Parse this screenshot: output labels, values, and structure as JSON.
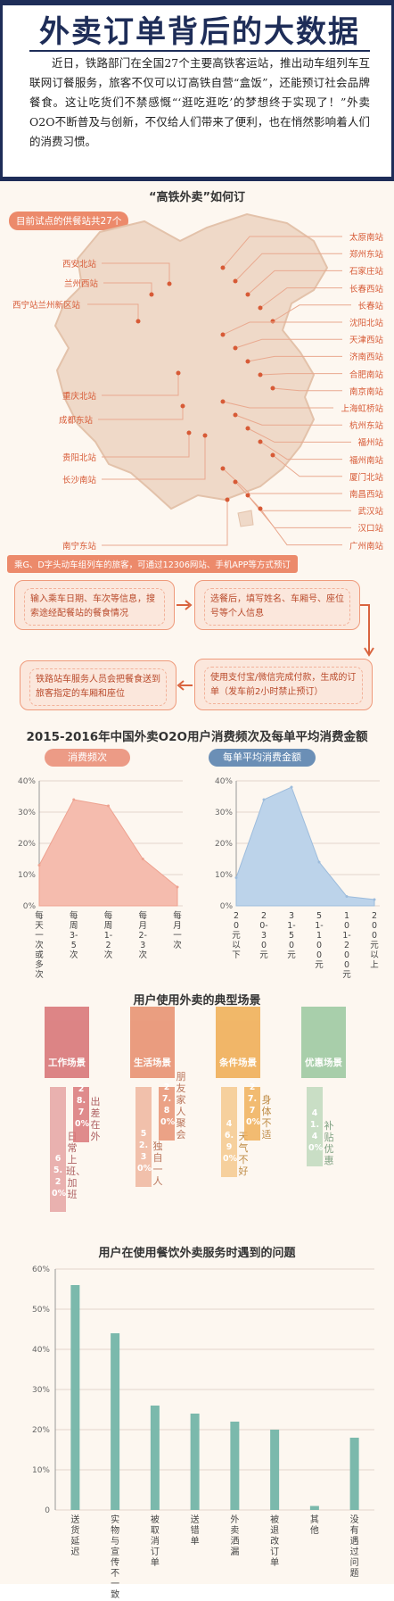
{
  "header": {
    "title": "外卖订单背后的大数据",
    "intro": "近日，铁路部门在全国27个主要高铁客运站，推出动车组列车互联网订餐服务，旅客不仅可以订高铁自营“盒饭”，还能预订社会品牌餐食。这让吃货们不禁感慨“‘逛吃逛吃’的梦想终于实现了！”外卖O2O不断普及与创新，不仅给人们带来了便利，也在悄然影响着人们的消费习惯。"
  },
  "map_section": {
    "title": "“高铁外卖”如何订",
    "pilot_tag": "目前试点的供餐站共27个",
    "stations_left": [
      "西安北站",
      "兰州西站",
      "西宁站兰州新区站",
      "重庆北站",
      "成都东站",
      "贵阳北站",
      "长沙南站",
      "南宁东站"
    ],
    "stations_right": [
      "太原南站",
      "郑州东站",
      "石家庄站",
      "长春西站",
      "长春站",
      "沈阳北站",
      "天津西站",
      "济南西站",
      "合肥南站",
      "南京南站",
      "上海虹桥站",
      "杭州东站",
      "福州站",
      "福州南站",
      "厦门北站",
      "南昌西站",
      "武汉站",
      "汉口站",
      "广州南站"
    ],
    "booking_tag": "乘G、D字头动车组列车的旅客，可通过12306网站、手机APP等方式预订",
    "flow": [
      "输入乘车日期、车次等信息，搜索途经配餐站的餐食情况",
      "选餐后，填写姓名、车厢号、座位号等个人信息",
      "使用支付宝/微信完成付款，生成的订单（发车前2小时禁止预订）",
      "铁路站车服务人员会把餐食送到旅客指定的车厢和座位"
    ]
  },
  "chart1": {
    "title": "2015-2016年中国外卖O2O用户消费频次及每单平均消费金额",
    "colors": {
      "left": "#f2b0a2",
      "right": "#b7cfe7",
      "left_pill": "#ec9b86",
      "right_pill": "#6b8fb6"
    }
  },
  "chart_data": [
    {
      "type": "area",
      "title": "消费频次",
      "categories": [
        "每天一次或多次",
        "每周3-5次",
        "每周1-2次",
        "每月2-3次",
        "每月一次"
      ],
      "values": [
        13,
        34,
        32,
        15,
        6
      ],
      "ylim": [
        0,
        40
      ],
      "yticks": [
        "0%",
        "10%",
        "20%",
        "30%",
        "40%"
      ]
    },
    {
      "type": "area",
      "title": "每单平均消费金额",
      "categories": [
        "20元以下",
        "20-30元",
        "31-50元",
        "51-100元",
        "101-200元",
        "200元以上"
      ],
      "values": [
        9,
        34,
        38,
        14,
        3,
        2
      ],
      "ylim": [
        0,
        40
      ],
      "yticks": [
        "0%",
        "10%",
        "20%",
        "30%",
        "40%"
      ]
    },
    {
      "type": "bar",
      "title": "用户使用外卖的典型场景",
      "groups": [
        {
          "name": "工作场景",
          "color": "#d9787a",
          "items": [
            {
              "label": "日常上班、加班",
              "value": 65.2,
              "display": "65.20%"
            },
            {
              "label": "出差在外",
              "value": 28.7,
              "display": "28.70%"
            }
          ]
        },
        {
          "name": "生活场景",
          "color": "#e89373",
          "items": [
            {
              "label": "独自一人",
              "value": 52.3,
              "display": "52.30%"
            },
            {
              "label": "朋友家人聚会",
              "value": 27.8,
              "display": "27.80%"
            }
          ]
        },
        {
          "name": "条件场景",
          "color": "#f0b05a",
          "items": [
            {
              "label": "天气不好",
              "value": 46.9,
              "display": "46.90%"
            },
            {
              "label": "身体不适",
              "value": 27.7,
              "display": "27.70%"
            }
          ]
        },
        {
          "name": "优惠场景",
          "color": "#9fcaa3",
          "items": [
            {
              "label": "补贴优惠",
              "value": 41.4,
              "display": "41.40%"
            }
          ]
        }
      ]
    },
    {
      "type": "bar",
      "title": "用户在使用餐饮外卖服务时遇到的问题",
      "categories": [
        "送货延迟",
        "实物与宣传不一致",
        "被取消订单",
        "送错单",
        "外卖洒漏",
        "被退改订单",
        "其他",
        "没有遇过问题"
      ],
      "values": [
        56,
        44,
        26,
        24,
        22,
        20,
        1,
        18
      ],
      "ylim": [
        0,
        60
      ],
      "yticks": [
        "0",
        "10%",
        "20%",
        "30%",
        "40%",
        "50%",
        "60%"
      ],
      "color": "#7bb9ac"
    }
  ]
}
